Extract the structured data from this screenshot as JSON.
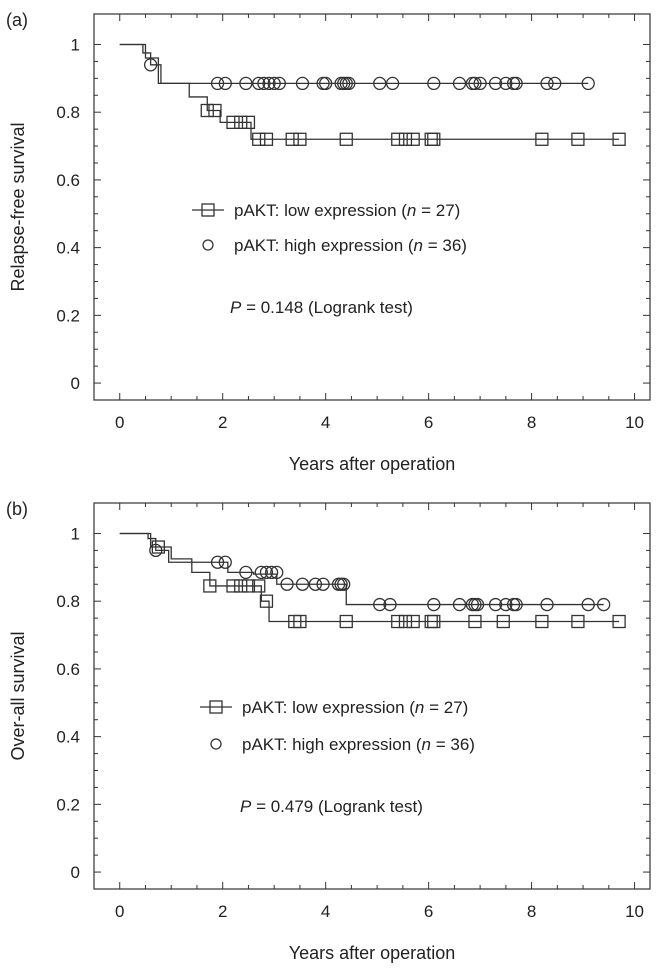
{
  "chart_data": [
    {
      "type": "line",
      "panel_label": "(a)",
      "xlabel": "Years after operation",
      "ylabel": "Relapse-free survival",
      "xlim": [
        -0.5,
        10.3
      ],
      "ylim": [
        -0.05,
        1.09
      ],
      "x_ticks": [
        0,
        2,
        4,
        6,
        8,
        10
      ],
      "x_tick_labels": [
        "0",
        "2",
        "4",
        "6",
        "8",
        "10"
      ],
      "y_ticks": [
        0,
        0.2,
        0.4,
        0.6,
        0.8,
        1
      ],
      "y_tick_labels": [
        "0",
        "0.2",
        "0.4",
        "0.6",
        "0.8",
        "1"
      ],
      "legend_position": "center",
      "legend": [
        {
          "marker": "square",
          "line": true,
          "text": "pAKT: low expression (",
          "italic": "n",
          "suffix": " = 27)"
        },
        {
          "marker": "circle",
          "line": false,
          "text": "pAKT: high expression (",
          "italic": "n",
          "suffix": " = 36)"
        }
      ],
      "annotation": {
        "italic": "P",
        "text": " = 0.148 (Logrank test)"
      },
      "series": [
        {
          "name": "pAKT: low expression (n = 27)",
          "marker": "square",
          "steps": [
            [
              0,
              1
            ],
            [
              0.5,
              0.96
            ],
            [
              0.75,
              0.885
            ],
            [
              1.35,
              0.845
            ],
            [
              1.7,
              0.805
            ],
            [
              1.95,
              0.77
            ],
            [
              2.55,
              0.72
            ],
            [
              9.7,
              0.72
            ]
          ],
          "censored": [
            [
              1.7,
              0.805
            ],
            [
              1.85,
              0.805
            ],
            [
              2.2,
              0.77
            ],
            [
              2.35,
              0.77
            ],
            [
              2.5,
              0.77
            ],
            [
              2.7,
              0.72
            ],
            [
              2.85,
              0.72
            ],
            [
              3.35,
              0.72
            ],
            [
              3.5,
              0.72
            ],
            [
              4.4,
              0.72
            ],
            [
              5.4,
              0.72
            ],
            [
              5.55,
              0.72
            ],
            [
              5.7,
              0.72
            ],
            [
              6.05,
              0.72
            ],
            [
              6.1,
              0.72
            ],
            [
              8.2,
              0.72
            ],
            [
              8.9,
              0.72
            ],
            [
              9.7,
              0.72
            ]
          ]
        },
        {
          "name": "pAKT: high expression (n = 36)",
          "marker": "circle",
          "steps": [
            [
              0,
              1
            ],
            [
              0.45,
              0.975
            ],
            [
              0.6,
              0.94
            ],
            [
              0.8,
              0.885
            ],
            [
              9.1,
              0.885
            ]
          ],
          "censored": [
            [
              0.6,
              0.94
            ],
            [
              1.9,
              0.885
            ],
            [
              2.05,
              0.885
            ],
            [
              2.45,
              0.885
            ],
            [
              2.7,
              0.885
            ],
            [
              2.8,
              0.885
            ],
            [
              2.9,
              0.885
            ],
            [
              3.0,
              0.885
            ],
            [
              3.1,
              0.885
            ],
            [
              3.55,
              0.885
            ],
            [
              3.95,
              0.885
            ],
            [
              4.0,
              0.885
            ],
            [
              4.3,
              0.885
            ],
            [
              4.35,
              0.885
            ],
            [
              4.4,
              0.885
            ],
            [
              4.45,
              0.885
            ],
            [
              5.05,
              0.885
            ],
            [
              5.3,
              0.885
            ],
            [
              6.1,
              0.885
            ],
            [
              6.6,
              0.885
            ],
            [
              6.85,
              0.885
            ],
            [
              6.9,
              0.885
            ],
            [
              7.0,
              0.885
            ],
            [
              7.3,
              0.885
            ],
            [
              7.5,
              0.885
            ],
            [
              7.65,
              0.885
            ],
            [
              7.7,
              0.885
            ],
            [
              8.3,
              0.885
            ],
            [
              8.45,
              0.885
            ],
            [
              9.1,
              0.885
            ]
          ]
        }
      ]
    },
    {
      "type": "line",
      "panel_label": "(b)",
      "xlabel": "Years after operation",
      "ylabel": "Over-all survival",
      "xlim": [
        -0.5,
        10.3
      ],
      "ylim": [
        -0.05,
        1.09
      ],
      "x_ticks": [
        0,
        2,
        4,
        6,
        8,
        10
      ],
      "x_tick_labels": [
        "0",
        "2",
        "4",
        "6",
        "8",
        "10"
      ],
      "y_ticks": [
        0,
        0.2,
        0.4,
        0.6,
        0.8,
        1
      ],
      "y_tick_labels": [
        "0",
        "0.2",
        "0.4",
        "0.6",
        "0.8",
        "1"
      ],
      "legend_position": "center",
      "legend": [
        {
          "marker": "square",
          "line": true,
          "text": "pAKT: low expression (",
          "italic": "n",
          "suffix": " = 27)"
        },
        {
          "marker": "circle",
          "line": false,
          "text": "pAKT: high expression (",
          "italic": "n",
          "suffix": " = 36)"
        }
      ],
      "annotation": {
        "italic": "P",
        "text": " = 0.479 (Logrank test)"
      },
      "series": [
        {
          "name": "pAKT: low expression (n = 27)",
          "marker": "square",
          "steps": [
            [
              0,
              1
            ],
            [
              0.6,
              0.96
            ],
            [
              1.0,
              0.925
            ],
            [
              1.4,
              0.885
            ],
            [
              1.75,
              0.845
            ],
            [
              2.75,
              0.8
            ],
            [
              2.9,
              0.74
            ],
            [
              9.7,
              0.74
            ]
          ],
          "censored": [
            [
              0.75,
              0.96
            ],
            [
              1.75,
              0.845
            ],
            [
              2.2,
              0.845
            ],
            [
              2.35,
              0.845
            ],
            [
              2.5,
              0.845
            ],
            [
              2.7,
              0.845
            ],
            [
              2.85,
              0.8
            ],
            [
              3.4,
              0.74
            ],
            [
              3.5,
              0.74
            ],
            [
              4.4,
              0.74
            ],
            [
              5.4,
              0.74
            ],
            [
              5.55,
              0.74
            ],
            [
              5.7,
              0.74
            ],
            [
              6.05,
              0.74
            ],
            [
              6.1,
              0.74
            ],
            [
              6.9,
              0.74
            ],
            [
              7.45,
              0.74
            ],
            [
              8.2,
              0.74
            ],
            [
              8.9,
              0.74
            ],
            [
              9.7,
              0.74
            ]
          ]
        },
        {
          "name": "pAKT: high expression (n = 36)",
          "marker": "circle",
          "steps": [
            [
              0,
              1
            ],
            [
              0.55,
              0.985
            ],
            [
              0.7,
              0.95
            ],
            [
              0.95,
              0.915
            ],
            [
              1.5,
              0.915
            ],
            [
              2.1,
              0.885
            ],
            [
              2.6,
              0.88
            ],
            [
              3.05,
              0.85
            ],
            [
              4.4,
              0.79
            ],
            [
              9.4,
              0.79
            ]
          ],
          "censored": [
            [
              0.7,
              0.95
            ],
            [
              1.9,
              0.915
            ],
            [
              2.05,
              0.915
            ],
            [
              2.45,
              0.885
            ],
            [
              2.75,
              0.885
            ],
            [
              2.85,
              0.885
            ],
            [
              2.95,
              0.885
            ],
            [
              3.05,
              0.885
            ],
            [
              3.25,
              0.85
            ],
            [
              3.55,
              0.85
            ],
            [
              3.8,
              0.85
            ],
            [
              3.95,
              0.85
            ],
            [
              4.25,
              0.85
            ],
            [
              4.3,
              0.85
            ],
            [
              4.35,
              0.85
            ],
            [
              5.05,
              0.79
            ],
            [
              5.25,
              0.79
            ],
            [
              6.1,
              0.79
            ],
            [
              6.6,
              0.79
            ],
            [
              6.85,
              0.79
            ],
            [
              6.9,
              0.79
            ],
            [
              6.95,
              0.79
            ],
            [
              7.3,
              0.79
            ],
            [
              7.5,
              0.79
            ],
            [
              7.65,
              0.79
            ],
            [
              7.7,
              0.79
            ],
            [
              8.3,
              0.79
            ],
            [
              9.1,
              0.79
            ],
            [
              9.4,
              0.79
            ]
          ]
        }
      ]
    }
  ]
}
